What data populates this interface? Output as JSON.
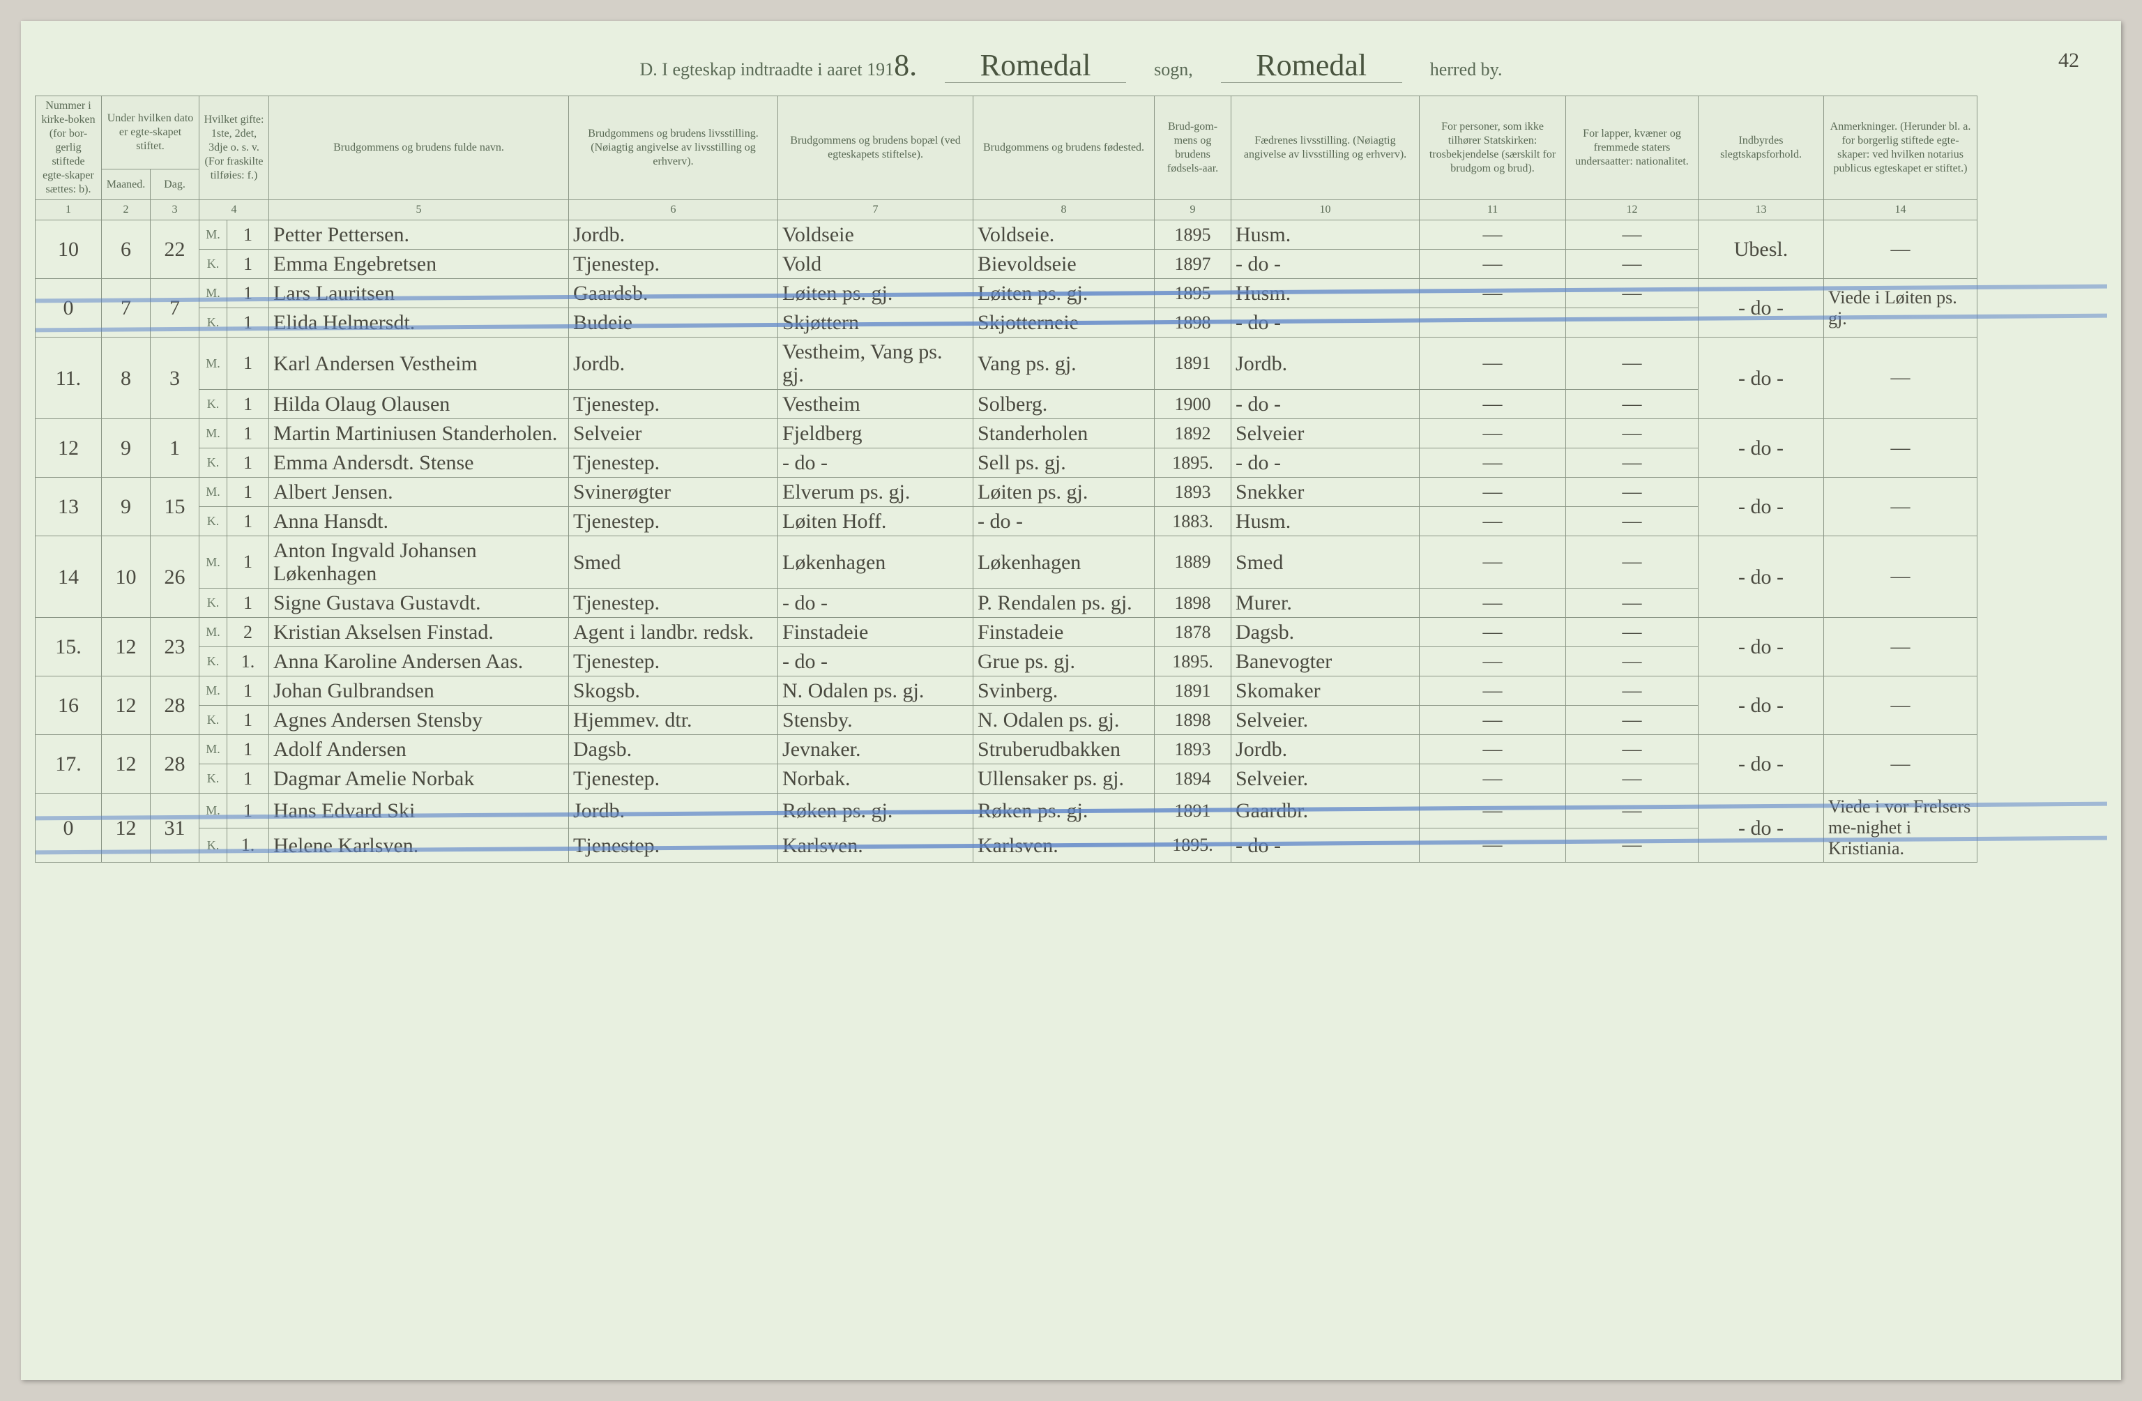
{
  "page_number": "42",
  "title": {
    "prefix": "D.  I egteskap indtraadte i aaret 191",
    "year_digit": "8.",
    "sogn_value": "Romedal",
    "sogn_label": "sogn,",
    "herred_value": "Romedal",
    "herred_label": "herred by."
  },
  "headers": {
    "c1": "Nummer i kirke-boken (for bor-gerlig stiftede egte-skaper sættes: b).",
    "c2_3": "Under hvilken dato er egte-skapet stiftet.",
    "c2": "Maaned.",
    "c3": "Dag.",
    "c4": "Hvilket gifte: 1ste, 2det, 3dje o. s. v. (For fraskilte tilføies: f.)",
    "c5": "Brudgommens og brudens fulde navn.",
    "c6": "Brudgommens og brudens livsstilling. (Nøiagtig angivelse av livsstilling og erhverv).",
    "c7": "Brudgommens og brudens bopæl (ved egteskapets stiftelse).",
    "c8": "Brudgommens og brudens fødested.",
    "c9": "Brud-gom-mens og brudens fødsels-aar.",
    "c10": "Fædrenes livsstilling. (Nøiagtig angivelse av livsstilling og erhverv).",
    "c11": "For personer, som ikke tilhører Statskirken: trosbekjendelse (særskilt for brudgom og brud).",
    "c12": "For lapper, kvæner og fremmede staters undersaatter: nationalitet.",
    "c13": "Indbyrdes slegtskapsforhold.",
    "c14": "Anmerkninger. (Herunder bl. a. for borgerlig stiftede egte-skaper: ved hvilken notarius publicus egteskapet er stiftet.)"
  },
  "colnums": [
    "1",
    "2",
    "3",
    "4",
    "5",
    "6",
    "7",
    "8",
    "9",
    "10",
    "11",
    "12",
    "13",
    "14"
  ],
  "entries": [
    {
      "num": "10",
      "month": "6",
      "day": "22",
      "struck": false,
      "m": {
        "gifte": "1",
        "name": "Petter Pettersen.",
        "stilling": "Jordb.",
        "bopel": "Voldseie",
        "fodested": "Voldseie.",
        "aar": "1895",
        "faedre": "Husm.",
        "c11": "—",
        "c12": "—"
      },
      "k": {
        "gifte": "1",
        "name": "Emma Engebretsen",
        "stilling": "Tjenestep.",
        "bopel": "Vold",
        "fodested": "Bievoldseie",
        "aar": "1897",
        "faedre": "- do -",
        "c11": "—",
        "c12": "—"
      },
      "c13": "Ubesl.",
      "c14": "—"
    },
    {
      "num": "0",
      "month": "7",
      "day": "7",
      "struck": true,
      "m": {
        "gifte": "1",
        "name": "Lars Lauritsen",
        "stilling": "Gaardsb.",
        "bopel": "Løiten ps. gj.",
        "fodested": "Løiten ps. gj.",
        "aar": "1895",
        "faedre": "Husm.",
        "c11": "—",
        "c12": "—"
      },
      "k": {
        "gifte": "1",
        "name": "Elida Helmersdt.",
        "stilling": "Budeie",
        "bopel": "Skjøttern",
        "fodested": "Skjotterneie",
        "aar": "1898",
        "faedre": "- do -",
        "c11": "",
        "c12": ""
      },
      "c13": "- do -",
      "c14": "Viede i Løiten ps. gj."
    },
    {
      "num": "11.",
      "month": "8",
      "day": "3",
      "struck": false,
      "m": {
        "gifte": "1",
        "name": "Karl Andersen Vestheim",
        "stilling": "Jordb.",
        "bopel": "Vestheim, Vang ps. gj.",
        "fodested": "Vang ps. gj.",
        "aar": "1891",
        "faedre": "Jordb.",
        "c11": "—",
        "c12": "—"
      },
      "k": {
        "gifte": "1",
        "name": "Hilda Olaug Olausen",
        "stilling": "Tjenestep.",
        "bopel": "Vestheim",
        "fodested": "Solberg.",
        "aar": "1900",
        "faedre": "- do -",
        "c11": "—",
        "c12": "—"
      },
      "c13": "- do -",
      "c14": "—"
    },
    {
      "num": "12",
      "month": "9",
      "day": "1",
      "struck": false,
      "m": {
        "gifte": "1",
        "name": "Martin Martiniusen Standerholen.",
        "stilling": "Selveier",
        "bopel": "Fjeldberg",
        "fodested": "Standerholen",
        "aar": "1892",
        "faedre": "Selveier",
        "c11": "—",
        "c12": "—"
      },
      "k": {
        "gifte": "1",
        "name": "Emma Andersdt. Stense",
        "stilling": "Tjenestep.",
        "bopel": "- do -",
        "fodested": "Sell ps. gj.",
        "aar": "1895.",
        "faedre": "- do -",
        "c11": "—",
        "c12": "—"
      },
      "c13": "- do -",
      "c14": "—"
    },
    {
      "num": "13",
      "month": "9",
      "day": "15",
      "struck": false,
      "m": {
        "gifte": "1",
        "name": "Albert Jensen.",
        "stilling": "Svinerøgter",
        "bopel": "Elverum ps. gj.",
        "fodested": "Løiten ps. gj.",
        "aar": "1893",
        "faedre": "Snekker",
        "c11": "—",
        "c12": "—"
      },
      "k": {
        "gifte": "1",
        "name": "Anna Hansdt.",
        "stilling": "Tjenestep.",
        "bopel": "Løiten Hoff.",
        "fodested": "- do -",
        "aar": "1883.",
        "faedre": "Husm.",
        "c11": "—",
        "c12": "—"
      },
      "c13": "- do -",
      "c14": "—"
    },
    {
      "num": "14",
      "month": "10",
      "day": "26",
      "struck": false,
      "m": {
        "gifte": "1",
        "name": "Anton Ingvald Johansen Løkenhagen",
        "stilling": "Smed",
        "bopel": "Løkenhagen",
        "fodested": "Løkenhagen",
        "aar": "1889",
        "faedre": "Smed",
        "c11": "—",
        "c12": "—"
      },
      "k": {
        "gifte": "1",
        "name": "Signe Gustava Gustavdt.",
        "stilling": "Tjenestep.",
        "bopel": "- do -",
        "fodested": "P. Rendalen ps. gj.",
        "aar": "1898",
        "faedre": "Murer.",
        "c11": "—",
        "c12": "—"
      },
      "c13": "- do -",
      "c14": "—"
    },
    {
      "num": "15.",
      "month": "12",
      "day": "23",
      "struck": false,
      "m": {
        "gifte": "2",
        "name": "Kristian Akselsen Finstad.",
        "stilling": "Agent i landbr. redsk.",
        "bopel": "Finstadeie",
        "fodested": "Finstadeie",
        "aar": "1878",
        "faedre": "Dagsb.",
        "c11": "—",
        "c12": "—"
      },
      "k": {
        "gifte": "1.",
        "name": "Anna Karoline Andersen Aas.",
        "stilling": "Tjenestep.",
        "bopel": "- do -",
        "fodested": "Grue ps. gj.",
        "aar": "1895.",
        "faedre": "Banevogter",
        "c11": "—",
        "c12": "—"
      },
      "c13": "- do -",
      "c14": "—"
    },
    {
      "num": "16",
      "month": "12",
      "day": "28",
      "struck": false,
      "m": {
        "gifte": "1",
        "name": "Johan Gulbrandsen",
        "stilling": "Skogsb.",
        "bopel": "N. Odalen ps. gj.",
        "fodested": "Svinberg.",
        "aar": "1891",
        "faedre": "Skomaker",
        "c11": "—",
        "c12": "—"
      },
      "k": {
        "gifte": "1",
        "name": "Agnes Andersen Stensby",
        "stilling": "Hjemmev. dtr.",
        "bopel": "Stensby.",
        "fodested": "N. Odalen ps. gj.",
        "aar": "1898",
        "faedre": "Selveier.",
        "c11": "—",
        "c12": "—"
      },
      "c13": "- do -",
      "c14": "—"
    },
    {
      "num": "17.",
      "month": "12",
      "day": "28",
      "struck": false,
      "m": {
        "gifte": "1",
        "name": "Adolf Andersen",
        "stilling": "Dagsb.",
        "bopel": "Jevnaker.",
        "fodested": "Struberudbakken",
        "aar": "1893",
        "faedre": "Jordb.",
        "c11": "—",
        "c12": "—"
      },
      "k": {
        "gifte": "1",
        "name": "Dagmar Amelie Norbak",
        "stilling": "Tjenestep.",
        "bopel": "Norbak.",
        "fodested": "Ullensaker ps. gj.",
        "aar": "1894",
        "faedre": "Selveier.",
        "c11": "—",
        "c12": "—"
      },
      "c13": "- do -",
      "c14": "—"
    },
    {
      "num": "0",
      "month": "12",
      "day": "31",
      "struck": true,
      "m": {
        "gifte": "1",
        "name": "Hans Edvard Ski",
        "stilling": "Jordb.",
        "bopel": "Røken ps. gj.",
        "fodested": "Røken ps. gj.",
        "aar": "1891",
        "faedre": "Gaardbr.",
        "c11": "—",
        "c12": "—"
      },
      "k": {
        "gifte": "1.",
        "name": "Helene Karlsven.",
        "stilling": "Tjenestep.",
        "bopel": "Karlsven.",
        "fodested": "Karlsven.",
        "aar": "1895.",
        "faedre": "- do -",
        "c11": "—",
        "c12": "—"
      },
      "c13": "- do -",
      "c14": "Viede i vor Frelsers me-nighet i Kristiania."
    }
  ],
  "mk_labels": {
    "m": "M.",
    "k": "K."
  }
}
